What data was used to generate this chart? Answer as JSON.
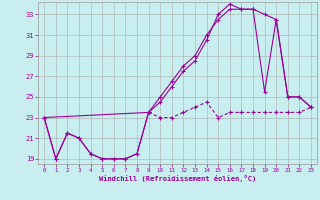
{
  "xlabel": "Windchill (Refroidissement éolien,°C)",
  "bg_color": "#c8eef0",
  "line_color": "#990099",
  "grid_color": "#aaaaaa",
  "xlim": [
    -0.5,
    23.5
  ],
  "ylim": [
    18.5,
    34.2
  ],
  "xticks": [
    0,
    1,
    2,
    3,
    4,
    5,
    6,
    7,
    8,
    9,
    10,
    11,
    12,
    13,
    14,
    15,
    16,
    17,
    18,
    19,
    20,
    21,
    22,
    23
  ],
  "yticks": [
    19,
    21,
    23,
    25,
    27,
    29,
    31,
    33
  ],
  "line1_x": [
    0,
    1,
    2,
    3,
    4,
    5,
    6,
    7,
    8,
    9,
    10,
    11,
    12,
    13,
    14,
    15,
    16,
    17,
    18,
    19,
    20,
    21,
    22,
    23
  ],
  "line1_y": [
    23.0,
    19.0,
    21.5,
    21.0,
    19.5,
    19.0,
    19.0,
    19.0,
    19.5,
    23.5,
    24.5,
    26.0,
    27.5,
    28.5,
    30.5,
    33.0,
    34.0,
    33.5,
    33.5,
    25.5,
    32.5,
    25.0,
    25.0,
    24.0
  ],
  "line2_x": [
    0,
    9,
    10,
    11,
    12,
    13,
    14,
    15,
    16,
    17,
    18,
    19,
    20,
    21,
    22,
    23
  ],
  "line2_y": [
    23.0,
    23.5,
    25.0,
    26.5,
    28.0,
    29.0,
    31.0,
    32.5,
    33.5,
    33.5,
    33.5,
    33.0,
    32.5,
    25.0,
    25.0,
    24.0
  ],
  "line3_x": [
    0,
    1,
    2,
    3,
    4,
    5,
    6,
    7,
    8,
    9,
    10,
    11,
    12,
    13,
    14,
    15,
    16,
    17,
    18,
    19,
    20,
    21,
    22,
    23
  ],
  "line3_y": [
    23.0,
    19.0,
    21.5,
    21.0,
    19.5,
    19.0,
    19.0,
    19.0,
    19.5,
    23.5,
    23.0,
    23.0,
    23.5,
    24.0,
    24.5,
    23.0,
    23.5,
    23.5,
    23.5,
    23.5,
    23.5,
    23.5,
    23.5,
    24.0
  ]
}
